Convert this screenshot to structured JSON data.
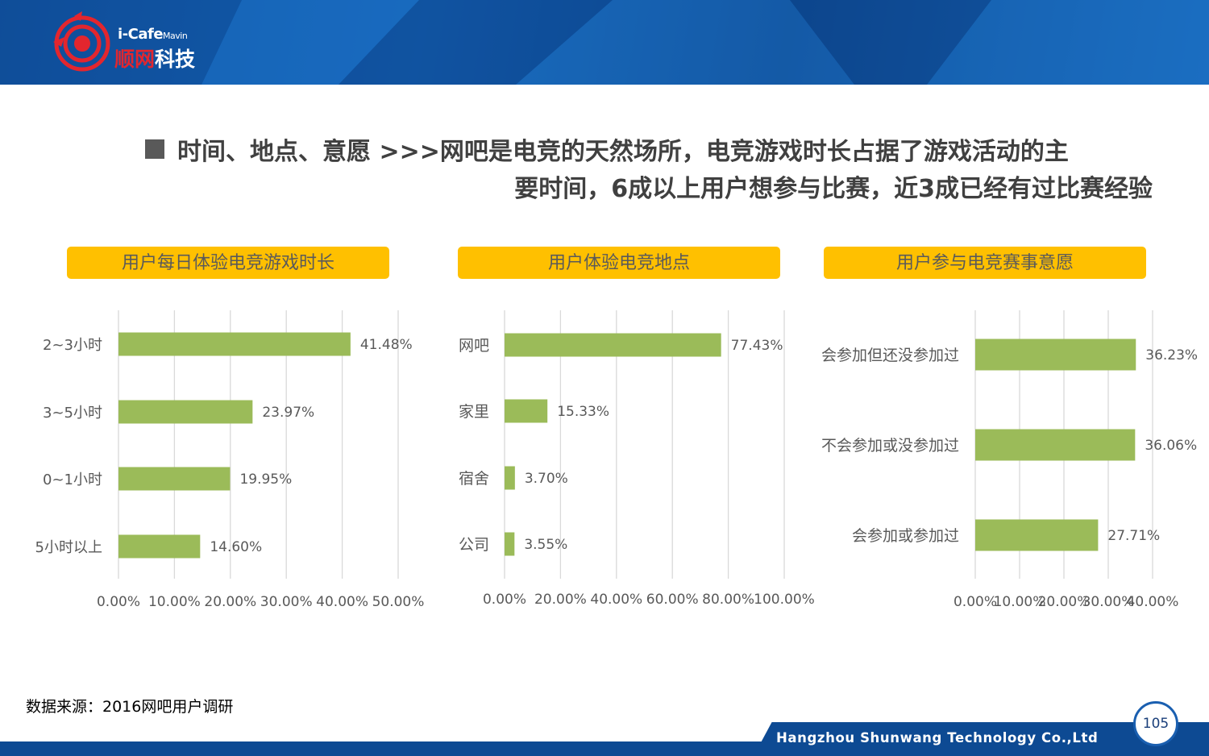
{
  "header": {
    "brand_top": "i-Cafe",
    "brand_sub": "Mavin",
    "brand_cn_red": "顺网",
    "brand_cn_white": "科技"
  },
  "title": {
    "line1": "时间、地点、意愿  >>>网吧是电竞的天然场所，电竞游戏时长占据了游戏活动的主",
    "line2": "要时间，6成以上用户想参与比赛，近3成已经有过比赛经验"
  },
  "panels": [
    {
      "heading": "用户每日体验电竞游戏时长"
    },
    {
      "heading": "用户体验电竞地点"
    },
    {
      "heading": "用户参与电竞赛事意愿"
    }
  ],
  "chart_data": [
    {
      "type": "bar",
      "orientation": "horizontal",
      "title": "用户每日体验电竞游戏时长",
      "categories": [
        "2~3小时",
        "3~5小时",
        "0~1小时",
        "5小时以上"
      ],
      "values": [
        41.48,
        23.97,
        19.95,
        14.6
      ],
      "data_labels": [
        "41.48%",
        "23.97%",
        "19.95%",
        "14.60%"
      ],
      "xlim": [
        0,
        50
      ],
      "x_ticks": [
        "0.00%",
        "10.00%",
        "20.00%",
        "30.00%",
        "40.00%",
        "50.00%"
      ],
      "grid": true,
      "bar_color": "#9bbb59"
    },
    {
      "type": "bar",
      "orientation": "horizontal",
      "title": "用户体验电竞地点",
      "categories": [
        "网吧",
        "家里",
        "宿舍",
        "公司"
      ],
      "values": [
        77.43,
        15.33,
        3.7,
        3.55
      ],
      "data_labels": [
        "77.43%",
        "15.33%",
        "3.70%",
        "3.55%"
      ],
      "xlim": [
        0,
        100
      ],
      "x_ticks": [
        "0.00%",
        "20.00%",
        "40.00%",
        "60.00%",
        "80.00%",
        "100.00%"
      ],
      "grid": true,
      "bar_color": "#9bbb59"
    },
    {
      "type": "bar",
      "orientation": "horizontal",
      "title": "用户参与电竞赛事意愿",
      "categories": [
        "会参加但还没参加过",
        "不会参加或没参加过",
        "会参加或参加过"
      ],
      "values": [
        36.23,
        36.06,
        27.71
      ],
      "data_labels": [
        "36.23%",
        "36.06%",
        "27.71%"
      ],
      "xlim": [
        0,
        40
      ],
      "x_ticks": [
        "0.00%",
        "10.00%",
        "20.00%",
        "30.00%",
        "40.00%"
      ],
      "grid": true,
      "bar_color": "#9bbb59"
    }
  ],
  "footer": {
    "source": "数据来源：2016网吧用户调研",
    "company": "Hangzhou Shunwang Technology Co.,Ltd",
    "page_number": "105"
  }
}
